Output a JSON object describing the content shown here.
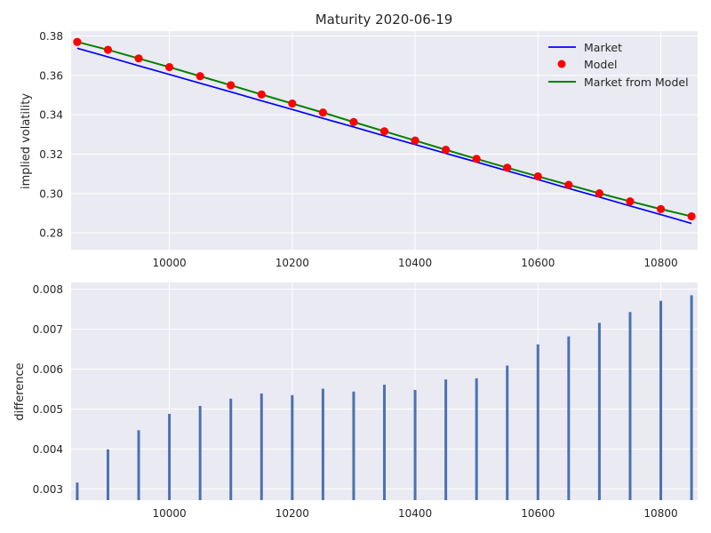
{
  "colors": {
    "plot_bg": "#eaeaf2",
    "grid": "#ffffff",
    "market": "#0000ff",
    "model": "#ff0000",
    "market_from_model": "#008000",
    "bars": "#4c72b0"
  },
  "chart_data": [
    {
      "type": "line",
      "title": "Maturity 2020-06-19",
      "xlabel": "",
      "ylabel": "implied volatility",
      "xlim": [
        9840,
        10860
      ],
      "ylim": [
        0.2715,
        0.3825
      ],
      "x_ticks": [
        10000,
        10200,
        10400,
        10600,
        10800
      ],
      "x_tick_labels": [
        "10000",
        "10200",
        "10400",
        "10600",
        "10800"
      ],
      "y_ticks": [
        0.28,
        0.3,
        0.32,
        0.34,
        0.36,
        0.38
      ],
      "y_tick_labels": [
        "0.28",
        "0.30",
        "0.32",
        "0.34",
        "0.36",
        "0.38"
      ],
      "grid": true,
      "legend_position": "top-right",
      "x": [
        9850,
        9900,
        9950,
        10000,
        10050,
        10100,
        10150,
        10200,
        10250,
        10300,
        10350,
        10400,
        10450,
        10500,
        10550,
        10600,
        10650,
        10700,
        10750,
        10800,
        10850
      ],
      "series": [
        {
          "name": "Market",
          "style": "line",
          "color_key": "market",
          "values": [
            0.3738,
            0.3694,
            0.3649,
            0.3605,
            0.356,
            0.3516,
            0.3471,
            0.3427,
            0.3382,
            0.3338,
            0.3293,
            0.3249,
            0.3204,
            0.316,
            0.3115,
            0.3071,
            0.3026,
            0.2982,
            0.2937,
            0.2893,
            0.2848
          ]
        },
        {
          "name": "Model",
          "style": "markers",
          "color_key": "model",
          "values": [
            0.377,
            0.373,
            0.3686,
            0.3642,
            0.3596,
            0.355,
            0.3503,
            0.3457,
            0.3411,
            0.3363,
            0.3316,
            0.3269,
            0.3222,
            0.3176,
            0.3131,
            0.3087,
            0.3044,
            0.3001,
            0.296,
            0.2921,
            0.2884
          ]
        },
        {
          "name": "Market from Model",
          "style": "line",
          "color_key": "market_from_model",
          "values": [
            0.377,
            0.373,
            0.3686,
            0.3642,
            0.3596,
            0.355,
            0.3503,
            0.3457,
            0.3411,
            0.3363,
            0.3316,
            0.3269,
            0.3222,
            0.3176,
            0.3131,
            0.3087,
            0.3044,
            0.3001,
            0.296,
            0.2921,
            0.2884
          ]
        }
      ]
    },
    {
      "type": "bar",
      "title": "",
      "xlabel": "",
      "ylabel": "difference",
      "xlim": [
        9840,
        10860
      ],
      "ylim": [
        0.00272,
        0.00817
      ],
      "x_ticks": [
        10000,
        10200,
        10400,
        10600,
        10800
      ],
      "x_tick_labels": [
        "10000",
        "10200",
        "10400",
        "10600",
        "10800"
      ],
      "y_ticks": [
        0.003,
        0.004,
        0.005,
        0.006,
        0.007,
        0.008
      ],
      "y_tick_labels": [
        "0.003",
        "0.004",
        "0.005",
        "0.006",
        "0.007",
        "0.008"
      ],
      "grid": true,
      "x": [
        9850,
        9900,
        9950,
        10000,
        10050,
        10100,
        10150,
        10200,
        10250,
        10300,
        10350,
        10400,
        10450,
        10500,
        10550,
        10600,
        10650,
        10700,
        10750,
        10800,
        10850
      ],
      "values": [
        0.00316,
        0.00399,
        0.00447,
        0.00488,
        0.00508,
        0.00526,
        0.00539,
        0.00535,
        0.00551,
        0.00544,
        0.00561,
        0.00548,
        0.00574,
        0.00577,
        0.00609,
        0.00662,
        0.00682,
        0.00716,
        0.00743,
        0.00771,
        0.00785
      ]
    }
  ]
}
